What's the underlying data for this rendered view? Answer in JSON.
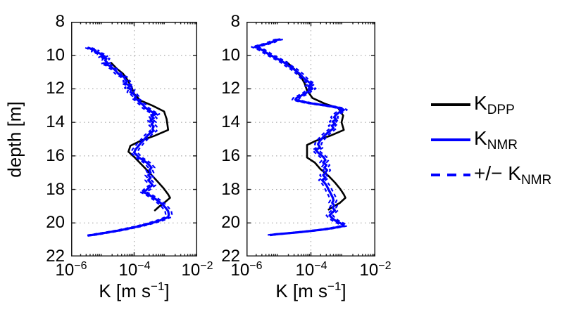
{
  "figure": {
    "background": "#ffffff"
  },
  "axes": {
    "ylabel": "depth [m]",
    "xlabel": {
      "pre": "K [m s",
      "sup": "−1",
      "post": "]"
    },
    "yticks": [
      "8",
      "10",
      "12",
      "14",
      "16",
      "18",
      "20",
      "22"
    ],
    "xticks": [
      {
        "base": "10",
        "exp": "−6"
      },
      {
        "base": "10",
        "exp": "−4"
      },
      {
        "base": "10",
        "exp": "−2"
      }
    ]
  },
  "legend": {
    "items": [
      {
        "label_pre": "K",
        "label_sub": "DPP",
        "line": "solid",
        "color": "#000000"
      },
      {
        "label_pre": "K",
        "label_sub": "NMR",
        "line": "solid",
        "color": "#0000ff"
      },
      {
        "label_pre": "+/− K",
        "label_sub": "NMR",
        "line": "dashed",
        "color": "#0000ff"
      }
    ]
  },
  "colors": {
    "dpp": "#000000",
    "nmr": "#0000ff",
    "grid": "#999999",
    "box": "#1a1a1a"
  },
  "chart_data": [
    {
      "type": "line",
      "title": "",
      "xlabel": "K [m s^-1]",
      "ylabel": "depth [m]",
      "x_axis": {
        "scale": "log10",
        "range": [
          -6,
          -2
        ],
        "ticks": [
          -6,
          -4,
          -2
        ],
        "grid_ticks": [
          -4
        ]
      },
      "y_axis": {
        "range": [
          8,
          22
        ],
        "ticks": [
          8,
          10,
          12,
          14,
          16,
          18,
          20,
          22
        ],
        "reversed": true,
        "units": "m"
      },
      "grid": true,
      "series": [
        {
          "name": "K_DPP",
          "color": "#000000",
          "style": "solid",
          "width": 2.6,
          "points": [
            [
              -4.73,
              10.45
            ],
            [
              -4.55,
              10.8
            ],
            [
              -4.35,
              11.1
            ],
            [
              -4.2,
              11.5
            ],
            [
              -4.08,
              11.9
            ],
            [
              -4.0,
              12.3
            ],
            [
              -3.8,
              12.7
            ],
            [
              -3.42,
              13.0
            ],
            [
              -3.05,
              13.35
            ],
            [
              -2.97,
              13.8
            ],
            [
              -2.92,
              14.45
            ],
            [
              -3.35,
              14.8
            ],
            [
              -3.8,
              15.1
            ],
            [
              -4.12,
              15.4
            ],
            [
              -4.18,
              15.75
            ],
            [
              -3.98,
              16.1
            ],
            [
              -3.8,
              16.45
            ],
            [
              -3.62,
              16.8
            ],
            [
              -3.42,
              17.2
            ],
            [
              -3.25,
              17.55
            ],
            [
              -3.08,
              17.9
            ],
            [
              -2.92,
              18.3
            ],
            [
              -2.86,
              18.5
            ],
            [
              -3.05,
              18.8
            ],
            [
              -3.19,
              19.0
            ],
            [
              -3.34,
              19.25
            ]
          ]
        },
        {
          "name": "K_NMR",
          "color": "#0000ff",
          "style": "solid",
          "width": 3.2,
          "points": [
            [
              -5.45,
              9.55
            ],
            [
              -5.32,
              9.65
            ],
            [
              -5.22,
              9.72
            ],
            [
              -5.25,
              9.78
            ],
            [
              -5.08,
              9.9
            ],
            [
              -5.0,
              10.0
            ],
            [
              -4.95,
              10.05
            ],
            [
              -5.02,
              10.12
            ],
            [
              -4.88,
              10.2
            ],
            [
              -4.92,
              10.3
            ],
            [
              -4.85,
              10.45
            ],
            [
              -4.95,
              10.5
            ],
            [
              -4.78,
              10.62
            ],
            [
              -4.7,
              10.75
            ],
            [
              -4.62,
              10.85
            ],
            [
              -4.55,
              11.0
            ],
            [
              -4.5,
              11.1
            ],
            [
              -4.42,
              11.2
            ],
            [
              -4.32,
              11.3
            ],
            [
              -4.28,
              11.45
            ],
            [
              -4.22,
              11.55
            ],
            [
              -4.3,
              11.68
            ],
            [
              -4.12,
              11.8
            ],
            [
              -4.2,
              11.95
            ],
            [
              -4.08,
              12.05
            ],
            [
              -4.12,
              12.2
            ],
            [
              -4.02,
              12.3
            ],
            [
              -3.95,
              12.45
            ],
            [
              -3.98,
              12.55
            ],
            [
              -3.88,
              12.68
            ],
            [
              -3.82,
              12.8
            ],
            [
              -3.72,
              12.95
            ],
            [
              -3.66,
              13.1
            ],
            [
              -3.55,
              13.25
            ],
            [
              -3.42,
              13.4
            ],
            [
              -3.3,
              13.5
            ],
            [
              -3.45,
              13.62
            ],
            [
              -3.38,
              13.75
            ],
            [
              -3.48,
              13.88
            ],
            [
              -3.4,
              14.0
            ],
            [
              -3.45,
              14.12
            ],
            [
              -3.38,
              14.25
            ],
            [
              -3.42,
              14.4
            ],
            [
              -3.38,
              14.5
            ],
            [
              -3.5,
              14.65
            ],
            [
              -3.58,
              14.8
            ],
            [
              -3.65,
              14.95
            ],
            [
              -3.72,
              15.1
            ],
            [
              -3.8,
              15.25
            ],
            [
              -3.88,
              15.45
            ],
            [
              -3.95,
              15.6
            ],
            [
              -4.0,
              15.8
            ],
            [
              -3.92,
              15.95
            ],
            [
              -3.85,
              16.1
            ],
            [
              -3.72,
              16.25
            ],
            [
              -3.6,
              16.4
            ],
            [
              -3.52,
              16.55
            ],
            [
              -3.45,
              16.7
            ],
            [
              -3.52,
              16.85
            ],
            [
              -3.48,
              17.0
            ],
            [
              -3.55,
              17.15
            ],
            [
              -3.48,
              17.3
            ],
            [
              -3.55,
              17.45
            ],
            [
              -3.48,
              17.6
            ],
            [
              -3.42,
              17.75
            ],
            [
              -3.52,
              17.88
            ],
            [
              -3.62,
              18.05
            ],
            [
              -3.72,
              18.15
            ],
            [
              -3.55,
              18.3
            ],
            [
              -3.42,
              18.45
            ],
            [
              -3.3,
              18.6
            ],
            [
              -3.2,
              18.75
            ],
            [
              -3.1,
              18.9
            ],
            [
              -3.0,
              19.1
            ],
            [
              -2.92,
              19.3
            ],
            [
              -2.9,
              19.5
            ],
            [
              -2.92,
              19.65
            ],
            [
              -3.1,
              19.8
            ],
            [
              -3.35,
              19.95
            ],
            [
              -3.6,
              20.08
            ],
            [
              -3.85,
              20.2
            ],
            [
              -4.1,
              20.3
            ],
            [
              -4.4,
              20.42
            ],
            [
              -4.7,
              20.52
            ],
            [
              -4.95,
              20.6
            ],
            [
              -5.2,
              20.68
            ],
            [
              -5.45,
              20.75
            ]
          ]
        },
        {
          "name": "+/− K_NMR",
          "color": "#0000ff",
          "style": "dashed",
          "width": 2.2,
          "derived_from": "K_NMR",
          "offset_log10": 0.1
        }
      ]
    },
    {
      "type": "line",
      "title": "",
      "xlabel": "K [m s^-1]",
      "ylabel": "depth [m]",
      "x_axis": {
        "scale": "log10",
        "range": [
          -6,
          -2
        ],
        "ticks": [
          -6,
          -4,
          -2
        ],
        "grid_ticks": [
          -4
        ]
      },
      "y_axis": {
        "range": [
          8,
          22
        ],
        "ticks": [
          8,
          10,
          12,
          14,
          16,
          18,
          20,
          22
        ],
        "reversed": true,
        "units": "m"
      },
      "grid": true,
      "series": [
        {
          "name": "K_DPP",
          "color": "#000000",
          "style": "solid",
          "width": 2.6,
          "points": [
            [
              -4.75,
              10.4
            ],
            [
              -4.5,
              10.85
            ],
            [
              -4.32,
              11.25
            ],
            [
              -4.2,
              11.65
            ],
            [
              -4.12,
              12.1
            ],
            [
              -3.95,
              12.55
            ],
            [
              -3.55,
              12.9
            ],
            [
              -3.15,
              13.15
            ],
            [
              -3.0,
              13.6
            ],
            [
              -3.05,
              14.0
            ],
            [
              -2.98,
              14.45
            ],
            [
              -3.4,
              14.8
            ],
            [
              -3.85,
              15.1
            ],
            [
              -4.12,
              15.35
            ],
            [
              -4.12,
              16.1
            ],
            [
              -3.88,
              16.4
            ],
            [
              -3.7,
              16.8
            ],
            [
              -3.45,
              17.2
            ],
            [
              -3.25,
              17.6
            ],
            [
              -3.1,
              17.95
            ],
            [
              -2.98,
              18.3
            ],
            [
              -2.93,
              18.5
            ],
            [
              -3.1,
              18.8
            ],
            [
              -3.28,
              19.0
            ],
            [
              -3.45,
              19.2
            ]
          ]
        },
        {
          "name": "K_NMR",
          "color": "#0000ff",
          "style": "solid",
          "width": 3.2,
          "points": [
            [
              -4.97,
              9.05
            ],
            [
              -5.1,
              9.1
            ],
            [
              -5.2,
              9.2
            ],
            [
              -5.35,
              9.3
            ],
            [
              -5.5,
              9.38
            ],
            [
              -5.65,
              9.45
            ],
            [
              -5.74,
              9.5
            ],
            [
              -5.6,
              9.6
            ],
            [
              -5.5,
              9.7
            ],
            [
              -5.42,
              9.8
            ],
            [
              -5.3,
              9.95
            ],
            [
              -5.15,
              10.1
            ],
            [
              -5.05,
              10.2
            ],
            [
              -4.9,
              10.35
            ],
            [
              -4.78,
              10.5
            ],
            [
              -4.68,
              10.65
            ],
            [
              -4.55,
              10.8
            ],
            [
              -4.45,
              10.95
            ],
            [
              -4.35,
              11.1
            ],
            [
              -4.28,
              11.25
            ],
            [
              -4.2,
              11.4
            ],
            [
              -4.1,
              11.55
            ],
            [
              -3.98,
              11.7
            ],
            [
              -4.08,
              11.85
            ],
            [
              -3.95,
              11.98
            ],
            [
              -4.05,
              12.1
            ],
            [
              -4.15,
              12.25
            ],
            [
              -4.3,
              12.4
            ],
            [
              -4.45,
              12.55
            ],
            [
              -4.48,
              12.65
            ],
            [
              -4.3,
              12.75
            ],
            [
              -4.05,
              12.85
            ],
            [
              -3.7,
              12.95
            ],
            [
              -3.35,
              13.05
            ],
            [
              -3.08,
              13.15
            ],
            [
              -2.98,
              13.25
            ],
            [
              -3.12,
              13.4
            ],
            [
              -3.22,
              13.55
            ],
            [
              -3.28,
              13.7
            ],
            [
              -3.22,
              13.82
            ],
            [
              -3.32,
              13.95
            ],
            [
              -3.26,
              14.08
            ],
            [
              -3.35,
              14.2
            ],
            [
              -3.3,
              14.35
            ],
            [
              -3.4,
              14.5
            ],
            [
              -3.5,
              14.65
            ],
            [
              -3.58,
              14.8
            ],
            [
              -3.65,
              14.95
            ],
            [
              -3.72,
              15.1
            ],
            [
              -3.78,
              15.3
            ],
            [
              -3.72,
              15.5
            ],
            [
              -3.85,
              15.65
            ],
            [
              -3.78,
              15.8
            ],
            [
              -3.68,
              15.95
            ],
            [
              -3.6,
              16.1
            ],
            [
              -3.55,
              16.25
            ],
            [
              -3.62,
              16.4
            ],
            [
              -3.52,
              16.55
            ],
            [
              -3.58,
              16.7
            ],
            [
              -3.5,
              16.85
            ],
            [
              -3.55,
              17.0
            ],
            [
              -3.62,
              17.15
            ],
            [
              -3.55,
              17.3
            ],
            [
              -3.65,
              17.45
            ],
            [
              -3.58,
              17.6
            ],
            [
              -3.52,
              17.75
            ],
            [
              -3.48,
              17.9
            ],
            [
              -3.44,
              18.05
            ],
            [
              -3.4,
              18.2
            ],
            [
              -3.36,
              18.35
            ],
            [
              -3.32,
              18.5
            ],
            [
              -3.3,
              18.65
            ],
            [
              -3.34,
              18.8
            ],
            [
              -3.28,
              18.95
            ],
            [
              -3.32,
              19.1
            ],
            [
              -3.26,
              19.25
            ],
            [
              -3.35,
              19.4
            ],
            [
              -3.42,
              19.55
            ],
            [
              -3.35,
              19.7
            ],
            [
              -3.25,
              19.85
            ],
            [
              -3.1,
              20.0
            ],
            [
              -3.0,
              20.1
            ],
            [
              -2.98,
              20.18
            ],
            [
              -3.3,
              20.3
            ],
            [
              -3.65,
              20.4
            ],
            [
              -4.0,
              20.48
            ],
            [
              -4.4,
              20.56
            ],
            [
              -4.8,
              20.63
            ],
            [
              -5.1,
              20.68
            ],
            [
              -5.25,
              20.72
            ]
          ]
        },
        {
          "name": "+/− K_NMR",
          "color": "#0000ff",
          "style": "dashed",
          "width": 2.2,
          "derived_from": "K_NMR",
          "offset_log10": 0.1
        }
      ]
    }
  ]
}
